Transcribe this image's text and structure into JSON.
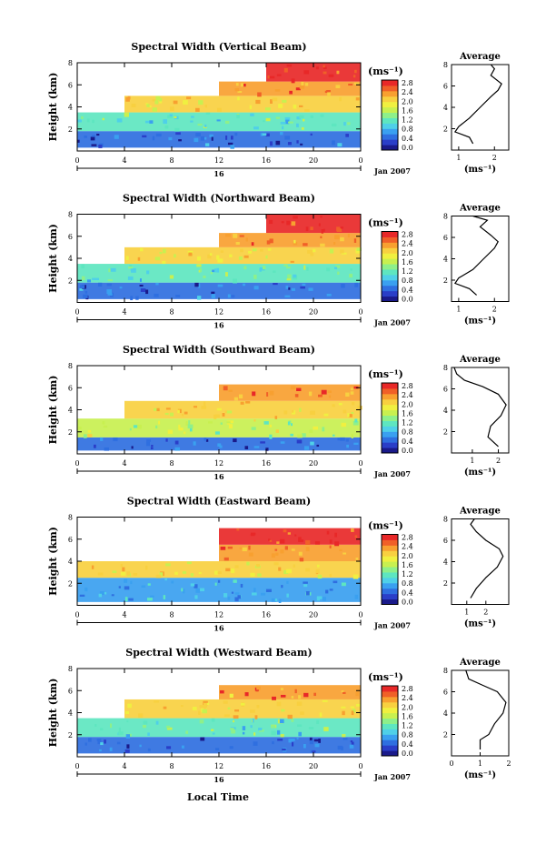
{
  "figure": {
    "xlabel": "Local Time",
    "date_label": "Jan 2007",
    "day_label": "16",
    "ylabel": "Height (km)",
    "unit_label": "(ms⁻¹)",
    "avg_title": "Average",
    "avg_xlabel": "(ms⁻¹)"
  },
  "colorbar": {
    "colors": [
      "#1a1a8a",
      "#2a3ec8",
      "#2f6fe0",
      "#3aa0f0",
      "#4fd0e8",
      "#5ee6c0",
      "#8ef08a",
      "#c8f050",
      "#f0f040",
      "#f8d040",
      "#f8a030",
      "#f06028",
      "#e82828"
    ],
    "ticks": [
      "2.8",
      "2.4",
      "2.0",
      "1.6",
      "1.2",
      "0.8",
      "0.4",
      "0.0"
    ]
  },
  "chart_data": [
    {
      "type": "heatmap",
      "title": "Spectral Width (Vertical Beam)",
      "xlabel": "Local Time",
      "ylabel": "Height (km)",
      "xlim": [
        0,
        24
      ],
      "ylim": [
        0,
        8
      ],
      "x_ticks": [
        "0",
        "4",
        "8",
        "12",
        "16",
        "20",
        "0"
      ],
      "y_ticks": [
        "2",
        "4",
        "6",
        "8"
      ],
      "colorbar": {
        "min": 0.0,
        "max": 2.8,
        "ticks": [
          "2.8",
          "2.4",
          "2.0",
          "1.6",
          "1.2",
          "0.8",
          "0.4",
          "0.0"
        ]
      },
      "regions": [
        {
          "t": [
            0,
            24
          ],
          "h": [
            0.3,
            1.8
          ],
          "value": 0.4
        },
        {
          "t": [
            0,
            24
          ],
          "h": [
            1.8,
            3.5
          ],
          "value": 1.2
        },
        {
          "t": [
            4,
            24
          ],
          "h": [
            3.5,
            5.0
          ],
          "value": 2.0
        },
        {
          "t": [
            12,
            24
          ],
          "h": [
            5.0,
            6.3
          ],
          "value": 2.4
        },
        {
          "t": [
            16,
            24
          ],
          "h": [
            6.3,
            8.0
          ],
          "value": 2.8
        }
      ],
      "average": {
        "xlim": [
          0.8,
          2.4
        ],
        "x_ticks": [
          "1",
          "2"
        ],
        "y_ticks": [
          "2",
          "4",
          "6",
          "8"
        ],
        "profile": [
          [
            1.4,
            0.6
          ],
          [
            1.3,
            1.2
          ],
          [
            0.9,
            1.7
          ],
          [
            1.0,
            2.2
          ],
          [
            1.3,
            3.0
          ],
          [
            1.6,
            4.0
          ],
          [
            1.9,
            5.0
          ],
          [
            2.1,
            5.6
          ],
          [
            2.2,
            6.2
          ],
          [
            1.9,
            7.0
          ],
          [
            2.0,
            7.6
          ],
          [
            1.9,
            8.0
          ]
        ]
      }
    },
    {
      "type": "heatmap",
      "title": "Spectral Width (Northward Beam)",
      "xlabel": "Local Time",
      "ylabel": "Height (km)",
      "xlim": [
        0,
        24
      ],
      "ylim": [
        0,
        8
      ],
      "x_ticks": [
        "0",
        "4",
        "8",
        "12",
        "16",
        "20",
        "0"
      ],
      "y_ticks": [
        "2",
        "4",
        "6",
        "8"
      ],
      "colorbar": {
        "min": 0.0,
        "max": 2.8,
        "ticks": [
          "2.8",
          "2.4",
          "2.0",
          "1.6",
          "1.2",
          "0.8",
          "0.4",
          "0.0"
        ]
      },
      "regions": [
        {
          "t": [
            0,
            24
          ],
          "h": [
            0.3,
            1.8
          ],
          "value": 0.4
        },
        {
          "t": [
            0,
            24
          ],
          "h": [
            1.8,
            3.5
          ],
          "value": 1.2
        },
        {
          "t": [
            4,
            24
          ],
          "h": [
            3.5,
            5.0
          ],
          "value": 2.0
        },
        {
          "t": [
            12,
            24
          ],
          "h": [
            5.0,
            6.3
          ],
          "value": 2.4
        },
        {
          "t": [
            16,
            24
          ],
          "h": [
            6.3,
            8.0
          ],
          "value": 2.8
        }
      ],
      "average": {
        "xlim": [
          0.8,
          2.4
        ],
        "x_ticks": [
          "1",
          "2"
        ],
        "y_ticks": [
          "2",
          "4",
          "6",
          "8"
        ],
        "profile": [
          [
            1.5,
            0.6
          ],
          [
            1.3,
            1.2
          ],
          [
            0.9,
            1.7
          ],
          [
            1.0,
            2.2
          ],
          [
            1.4,
            3.0
          ],
          [
            1.7,
            4.0
          ],
          [
            2.0,
            5.0
          ],
          [
            2.1,
            5.6
          ],
          [
            1.9,
            6.2
          ],
          [
            1.6,
            7.0
          ],
          [
            1.8,
            7.6
          ],
          [
            1.4,
            8.0
          ]
        ]
      }
    },
    {
      "type": "heatmap",
      "title": "Spectral Width (Southward Beam)",
      "xlabel": "Local Time",
      "ylabel": "Height (km)",
      "xlim": [
        0,
        24
      ],
      "ylim": [
        0,
        8
      ],
      "x_ticks": [
        "0",
        "4",
        "8",
        "12",
        "16",
        "20",
        "0"
      ],
      "y_ticks": [
        "2",
        "4",
        "6",
        "8"
      ],
      "colorbar": {
        "min": 0.0,
        "max": 2.8,
        "ticks": [
          "2.8",
          "2.4",
          "2.0",
          "1.6",
          "1.2",
          "0.8",
          "0.4",
          "0.0"
        ]
      },
      "regions": [
        {
          "t": [
            0,
            24
          ],
          "h": [
            0.3,
            1.5
          ],
          "value": 0.4
        },
        {
          "t": [
            0,
            24
          ],
          "h": [
            1.5,
            3.2
          ],
          "value": 1.6
        },
        {
          "t": [
            4,
            24
          ],
          "h": [
            3.2,
            4.8
          ],
          "value": 2.0
        },
        {
          "t": [
            12,
            24
          ],
          "h": [
            4.8,
            6.3
          ],
          "value": 2.4
        }
      ],
      "average": {
        "xlim": [
          0.2,
          2.4
        ],
        "x_ticks": [
          "1",
          "2"
        ],
        "y_ticks": [
          "2",
          "4",
          "6",
          "8"
        ],
        "profile": [
          [
            2.0,
            0.6
          ],
          [
            1.6,
            1.5
          ],
          [
            1.7,
            2.5
          ],
          [
            2.1,
            3.5
          ],
          [
            2.3,
            4.5
          ],
          [
            2.0,
            5.5
          ],
          [
            1.4,
            6.2
          ],
          [
            0.7,
            6.8
          ],
          [
            0.4,
            7.4
          ],
          [
            0.3,
            8.0
          ]
        ]
      }
    },
    {
      "type": "heatmap",
      "title": "Spectral Width (Eastward Beam)",
      "xlabel": "Local Time",
      "ylabel": "Height (km)",
      "xlim": [
        0,
        24
      ],
      "ylim": [
        0,
        8
      ],
      "x_ticks": [
        "0",
        "4",
        "8",
        "12",
        "16",
        "20",
        "0"
      ],
      "y_ticks": [
        "2",
        "4",
        "6",
        "8"
      ],
      "colorbar": {
        "min": 0.0,
        "max": 2.8,
        "ticks": [
          "2.8",
          "2.4",
          "2.0",
          "1.6",
          "1.2",
          "0.8",
          "0.4",
          "0.0"
        ]
      },
      "regions": [
        {
          "t": [
            0,
            24
          ],
          "h": [
            0.3,
            2.5
          ],
          "value": 0.8
        },
        {
          "t": [
            0,
            24
          ],
          "h": [
            2.5,
            4.0
          ],
          "value": 2.0
        },
        {
          "t": [
            12,
            24
          ],
          "h": [
            4.0,
            5.5
          ],
          "value": 2.4
        },
        {
          "t": [
            12,
            24
          ],
          "h": [
            5.5,
            7.0
          ],
          "value": 2.8
        }
      ],
      "average": {
        "xlim": [
          0.2,
          3.2
        ],
        "x_ticks": [
          "1",
          "2"
        ],
        "y_ticks": [
          "2",
          "4",
          "6",
          "8"
        ],
        "profile": [
          [
            1.2,
            0.6
          ],
          [
            1.5,
            1.5
          ],
          [
            2.0,
            2.5
          ],
          [
            2.6,
            3.5
          ],
          [
            2.9,
            4.5
          ],
          [
            2.7,
            5.2
          ],
          [
            2.0,
            6.0
          ],
          [
            1.5,
            6.8
          ],
          [
            1.2,
            7.5
          ],
          [
            1.4,
            8.0
          ]
        ]
      }
    },
    {
      "type": "heatmap",
      "title": "Spectral Width (Westward Beam)",
      "xlabel": "Local Time",
      "ylabel": "Height (km)",
      "xlim": [
        0,
        24
      ],
      "ylim": [
        0,
        8
      ],
      "x_ticks": [
        "0",
        "4",
        "8",
        "12",
        "16",
        "20",
        "0"
      ],
      "y_ticks": [
        "2",
        "4",
        "6",
        "8"
      ],
      "colorbar": {
        "min": 0.0,
        "max": 2.8,
        "ticks": [
          "2.8",
          "2.4",
          "2.0",
          "1.6",
          "1.2",
          "0.8",
          "0.4",
          "0.0"
        ]
      },
      "regions": [
        {
          "t": [
            0,
            24
          ],
          "h": [
            0.3,
            1.8
          ],
          "value": 0.4
        },
        {
          "t": [
            0,
            24
          ],
          "h": [
            1.8,
            3.5
          ],
          "value": 1.2
        },
        {
          "t": [
            4,
            24
          ],
          "h": [
            3.5,
            5.2
          ],
          "value": 2.0
        },
        {
          "t": [
            12,
            24
          ],
          "h": [
            5.2,
            6.5
          ],
          "value": 2.4
        }
      ],
      "average": {
        "xlim": [
          0,
          2
        ],
        "x_ticks": [
          "0",
          "1",
          "2"
        ],
        "y_ticks": [
          "2",
          "4",
          "6",
          "8"
        ],
        "profile": [
          [
            1.0,
            0.6
          ],
          [
            1.0,
            1.5
          ],
          [
            1.3,
            2.0
          ],
          [
            1.5,
            3.0
          ],
          [
            1.8,
            4.0
          ],
          [
            1.9,
            5.0
          ],
          [
            1.6,
            6.0
          ],
          [
            1.1,
            6.6
          ],
          [
            0.6,
            7.2
          ],
          [
            0.5,
            8.0
          ]
        ]
      }
    }
  ]
}
